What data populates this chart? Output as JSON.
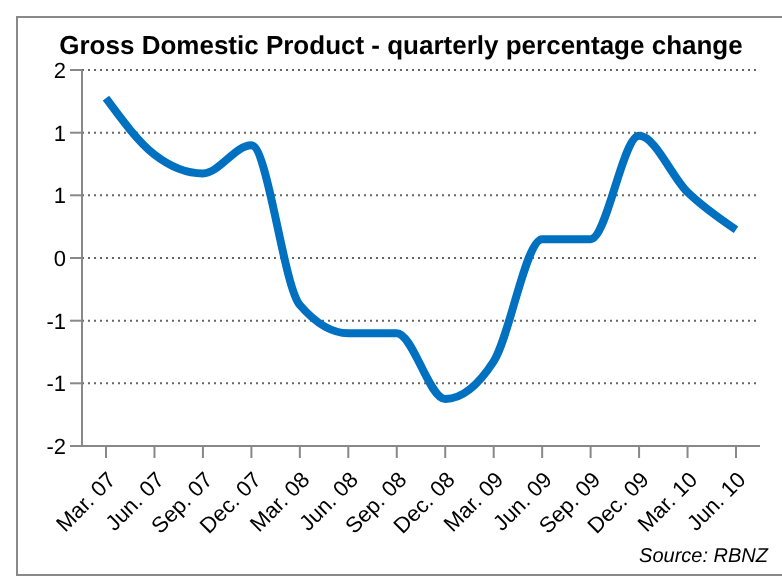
{
  "chart_data": {
    "type": "line",
    "title": "Gross Domestic Product - quarterly percentage change",
    "categories": [
      "Mar. 07",
      "Jun. 07",
      "Sep. 07",
      "Dec. 07",
      "Mar. 08",
      "Jun. 08",
      "Sep. 08",
      "Dec. 08",
      "Mar. 09",
      "Jun. 09",
      "Sep. 09",
      "Dec. 09",
      "Mar. 10",
      "Jun. 10"
    ],
    "series": [
      {
        "color": "#0070c0",
        "values": [
          1.7,
          1.1,
          0.9,
          1.2,
          -0.5,
          -0.8,
          -0.8,
          -1.5,
          -1.1,
          0.2,
          0.2,
          1.3,
          0.7,
          0.3
        ]
      }
    ],
    "ylim": [
      -2,
      2
    ],
    "yticks": [
      -2,
      {
        "value": -1.333,
        "label": "-1"
      },
      {
        "value": -0.667,
        "label": "-1"
      },
      0,
      {
        "value": 0.667,
        "label": "1"
      },
      {
        "value": 1.333,
        "label": "1"
      },
      2
    ],
    "grid": "y",
    "marker": "none",
    "line_style": "solid",
    "annotations": [
      "Source: RBNZ"
    ]
  }
}
